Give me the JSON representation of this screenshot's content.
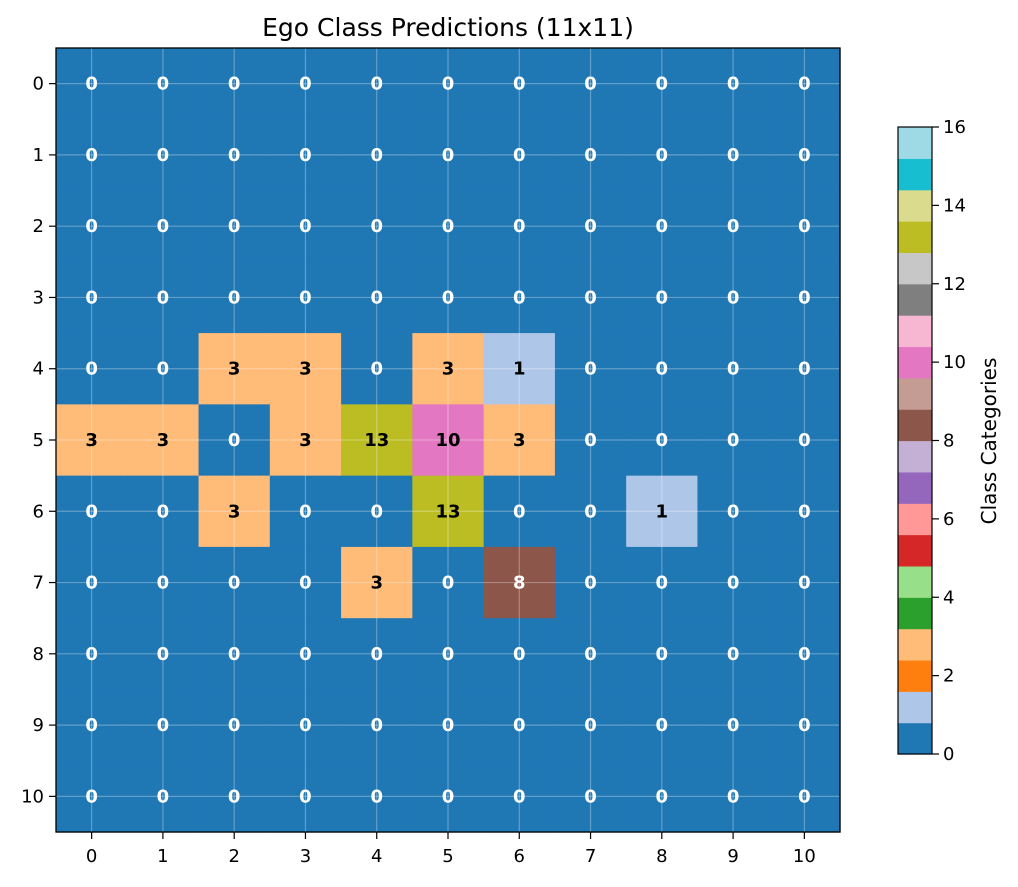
{
  "chart_data": {
    "type": "heatmap",
    "title": "Ego Class Predictions (11x11)",
    "x_ticks": [
      "0",
      "1",
      "2",
      "3",
      "4",
      "5",
      "6",
      "7",
      "8",
      "9",
      "10"
    ],
    "y_ticks": [
      "0",
      "1",
      "2",
      "3",
      "4",
      "5",
      "6",
      "7",
      "8",
      "9",
      "10"
    ],
    "values": [
      [
        0,
        0,
        0,
        0,
        0,
        0,
        0,
        0,
        0,
        0,
        0
      ],
      [
        0,
        0,
        0,
        0,
        0,
        0,
        0,
        0,
        0,
        0,
        0
      ],
      [
        0,
        0,
        0,
        0,
        0,
        0,
        0,
        0,
        0,
        0,
        0
      ],
      [
        0,
        0,
        0,
        0,
        0,
        0,
        0,
        0,
        0,
        0,
        0
      ],
      [
        0,
        0,
        3,
        3,
        0,
        3,
        1,
        0,
        0,
        0,
        0
      ],
      [
        3,
        3,
        0,
        3,
        13,
        10,
        3,
        0,
        0,
        0,
        0
      ],
      [
        0,
        0,
        3,
        0,
        0,
        13,
        0,
        0,
        1,
        0,
        0
      ],
      [
        0,
        0,
        0,
        0,
        3,
        0,
        8,
        0,
        0,
        0,
        0
      ],
      [
        0,
        0,
        0,
        0,
        0,
        0,
        0,
        0,
        0,
        0,
        0
      ],
      [
        0,
        0,
        0,
        0,
        0,
        0,
        0,
        0,
        0,
        0,
        0
      ],
      [
        0,
        0,
        0,
        0,
        0,
        0,
        0,
        0,
        0,
        0,
        0
      ]
    ],
    "grid": true,
    "colorbar": {
      "label": "Class Categories",
      "range": [
        0,
        16
      ],
      "ticks": [
        "0",
        "2",
        "4",
        "6",
        "8",
        "10",
        "12",
        "14",
        "16"
      ],
      "colors": [
        "#1f77b4",
        "#aec7e8",
        "#ff7f0e",
        "#ffbb78",
        "#2ca02c",
        "#98df8a",
        "#d62728",
        "#ff9896",
        "#9467bd",
        "#c5b0d5",
        "#8c564b",
        "#c49c94",
        "#e377c2",
        "#f7b6d2",
        "#7f7f7f",
        "#c7c7c7",
        "#bcbd22",
        "#dbdb8d",
        "#17becf",
        "#9edae5"
      ]
    },
    "label_colors": {
      "dark_bg": "#ffffff",
      "light_bg": "#000000"
    }
  }
}
